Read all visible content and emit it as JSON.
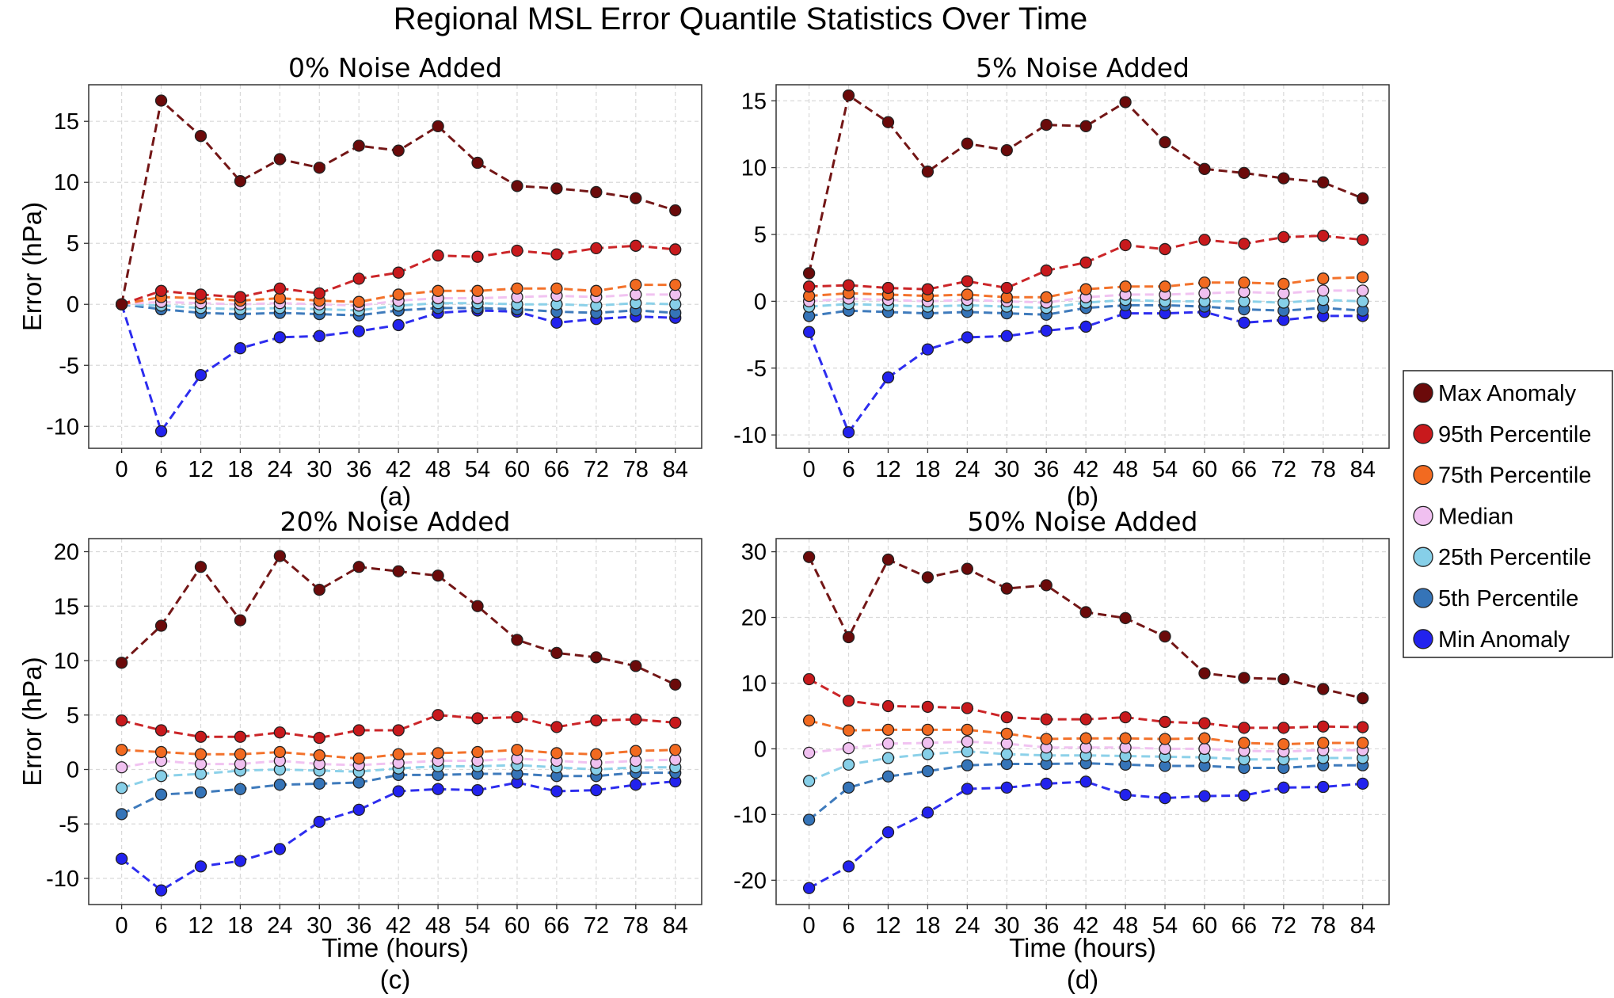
{
  "figure": {
    "title": "Regional MSL Error Quantile Statistics Over Time"
  },
  "legend": {
    "placement": "right",
    "entries": [
      {
        "label": "Max Anomaly",
        "color": "#6b0a0a"
      },
      {
        "label": "95th Percentile",
        "color": "#c8191c"
      },
      {
        "label": "75th Percentile",
        "color": "#f26a20"
      },
      {
        "label": "Median",
        "color": "#f0c0f0"
      },
      {
        "label": "25th Percentile",
        "color": "#86cfe8"
      },
      {
        "label": "5th Percentile",
        "color": "#3574b8"
      },
      {
        "label": "Min Anomaly",
        "color": "#2222ee"
      }
    ]
  },
  "chart_data": [
    {
      "type": "line",
      "panel_label": "(a)",
      "title": "0% Noise Added",
      "xlabel": "",
      "ylabel": "Error (hPa)",
      "x": [
        0,
        6,
        12,
        18,
        24,
        30,
        36,
        42,
        48,
        54,
        60,
        66,
        72,
        78,
        84
      ],
      "xlim": [
        -5,
        88
      ],
      "ylim": [
        -11.8,
        18
      ],
      "yticks": [
        -10,
        -5,
        0,
        5,
        10,
        15
      ],
      "grid": true,
      "series": [
        {
          "name": "Max Anomaly",
          "values": [
            0,
            16.7,
            13.8,
            10.1,
            11.9,
            11.2,
            13.0,
            12.6,
            14.6,
            11.6,
            9.7,
            9.5,
            9.2,
            8.7,
            7.7
          ]
        },
        {
          "name": "95th Percentile",
          "values": [
            0,
            1.1,
            0.8,
            0.6,
            1.3,
            0.9,
            2.1,
            2.6,
            4.0,
            3.9,
            4.4,
            4.1,
            4.6,
            4.8,
            4.5
          ]
        },
        {
          "name": "75th Percentile",
          "values": [
            0,
            0.6,
            0.5,
            0.3,
            0.5,
            0.3,
            0.2,
            0.8,
            1.1,
            1.1,
            1.3,
            1.3,
            1.1,
            1.6,
            1.6
          ]
        },
        {
          "name": "Median",
          "values": [
            0,
            0.2,
            0.1,
            0.0,
            0.1,
            0.0,
            -0.1,
            0.3,
            0.5,
            0.5,
            0.6,
            0.7,
            0.6,
            0.8,
            0.8
          ]
        },
        {
          "name": "25th Percentile",
          "values": [
            0,
            -0.1,
            -0.3,
            -0.4,
            -0.3,
            -0.4,
            -0.5,
            -0.1,
            0.1,
            0.1,
            0.0,
            0.0,
            -0.1,
            0.1,
            0.0
          ]
        },
        {
          "name": "5th Percentile",
          "values": [
            0,
            -0.4,
            -0.7,
            -0.8,
            -0.7,
            -0.8,
            -0.9,
            -0.5,
            -0.3,
            -0.3,
            -0.4,
            -0.6,
            -0.7,
            -0.5,
            -0.7
          ]
        },
        {
          "name": "Min Anomaly",
          "values": [
            0,
            -10.4,
            -5.8,
            -3.6,
            -2.7,
            -2.6,
            -2.2,
            -1.7,
            -0.7,
            -0.5,
            -0.6,
            -1.5,
            -1.2,
            -1.0,
            -1.1
          ]
        }
      ]
    },
    {
      "type": "line",
      "panel_label": "(b)",
      "title": "5% Noise Added",
      "xlabel": "",
      "ylabel": "",
      "x": [
        0,
        6,
        12,
        18,
        24,
        30,
        36,
        42,
        48,
        54,
        60,
        66,
        72,
        78,
        84
      ],
      "xlim": [
        -5,
        88
      ],
      "ylim": [
        -11,
        16.2
      ],
      "yticks": [
        -10,
        -5,
        0,
        5,
        10,
        15
      ],
      "grid": true,
      "series": [
        {
          "name": "Max Anomaly",
          "values": [
            2.1,
            15.4,
            13.4,
            9.7,
            11.8,
            11.3,
            13.2,
            13.1,
            14.9,
            11.9,
            9.9,
            9.6,
            9.2,
            8.9,
            7.7
          ]
        },
        {
          "name": "95th Percentile",
          "values": [
            1.1,
            1.2,
            1.0,
            0.9,
            1.5,
            1.0,
            2.3,
            2.9,
            4.2,
            3.9,
            4.6,
            4.3,
            4.8,
            4.9,
            4.6
          ]
        },
        {
          "name": "75th Percentile",
          "values": [
            0.4,
            0.6,
            0.5,
            0.4,
            0.5,
            0.3,
            0.3,
            0.9,
            1.1,
            1.1,
            1.4,
            1.4,
            1.3,
            1.7,
            1.8
          ]
        },
        {
          "name": "Median",
          "values": [
            0.0,
            0.2,
            0.1,
            0.0,
            0.1,
            0.0,
            -0.1,
            0.3,
            0.5,
            0.5,
            0.6,
            0.7,
            0.6,
            0.8,
            0.8
          ]
        },
        {
          "name": "25th Percentile",
          "values": [
            -0.4,
            -0.2,
            -0.3,
            -0.4,
            -0.3,
            -0.4,
            -0.5,
            -0.1,
            0.1,
            0.0,
            0.0,
            0.0,
            -0.1,
            0.1,
            0.0
          ]
        },
        {
          "name": "5th Percentile",
          "values": [
            -1.1,
            -0.7,
            -0.8,
            -0.9,
            -0.8,
            -0.9,
            -1.0,
            -0.5,
            -0.3,
            -0.3,
            -0.4,
            -0.6,
            -0.7,
            -0.5,
            -0.7
          ]
        },
        {
          "name": "Min Anomaly",
          "values": [
            -2.3,
            -9.8,
            -5.7,
            -3.6,
            -2.7,
            -2.6,
            -2.2,
            -1.9,
            -0.9,
            -0.9,
            -0.8,
            -1.6,
            -1.4,
            -1.1,
            -1.1
          ]
        }
      ]
    },
    {
      "type": "line",
      "panel_label": "(c)",
      "title": "20% Noise Added",
      "xlabel": "Time (hours)",
      "ylabel": "Error (hPa)",
      "x": [
        0,
        6,
        12,
        18,
        24,
        30,
        36,
        42,
        48,
        54,
        60,
        66,
        72,
        78,
        84
      ],
      "xlim": [
        -5,
        88
      ],
      "ylim": [
        -12.4,
        21.2
      ],
      "yticks": [
        -10,
        -5,
        0,
        5,
        10,
        15,
        20
      ],
      "grid": true,
      "series": [
        {
          "name": "Max Anomaly",
          "values": [
            9.8,
            13.2,
            18.6,
            13.7,
            19.6,
            16.5,
            18.6,
            18.2,
            17.8,
            15.0,
            11.9,
            10.7,
            10.3,
            9.5,
            7.8
          ]
        },
        {
          "name": "95th Percentile",
          "values": [
            4.5,
            3.6,
            3.0,
            3.0,
            3.4,
            2.9,
            3.6,
            3.6,
            5.0,
            4.7,
            4.8,
            3.9,
            4.5,
            4.6,
            4.3
          ]
        },
        {
          "name": "75th Percentile",
          "values": [
            1.8,
            1.6,
            1.4,
            1.4,
            1.6,
            1.3,
            1.0,
            1.4,
            1.5,
            1.6,
            1.8,
            1.5,
            1.4,
            1.7,
            1.8
          ]
        },
        {
          "name": "Median",
          "values": [
            0.2,
            0.8,
            0.5,
            0.5,
            0.8,
            0.5,
            0.4,
            0.6,
            0.8,
            0.8,
            1.0,
            0.8,
            0.6,
            0.8,
            0.9
          ]
        },
        {
          "name": "25th Percentile",
          "values": [
            -1.7,
            -0.6,
            -0.4,
            -0.1,
            0.0,
            -0.1,
            -0.2,
            0.1,
            0.3,
            0.3,
            0.4,
            0.2,
            0.0,
            0.2,
            0.2
          ]
        },
        {
          "name": "5th Percentile",
          "values": [
            -4.1,
            -2.3,
            -2.1,
            -1.8,
            -1.4,
            -1.3,
            -1.2,
            -0.5,
            -0.5,
            -0.4,
            -0.4,
            -0.6,
            -0.6,
            -0.3,
            -0.3
          ]
        },
        {
          "name": "Min Anomaly",
          "values": [
            -8.2,
            -11.1,
            -8.9,
            -8.4,
            -7.3,
            -4.8,
            -3.7,
            -2.0,
            -1.8,
            -1.9,
            -1.2,
            -2.0,
            -1.9,
            -1.4,
            -1.1
          ]
        }
      ]
    },
    {
      "type": "line",
      "panel_label": "(d)",
      "title": "50% Noise Added",
      "xlabel": "Time (hours)",
      "ylabel": "",
      "x": [
        0,
        6,
        12,
        18,
        24,
        30,
        36,
        42,
        48,
        54,
        60,
        66,
        72,
        78,
        84
      ],
      "xlim": [
        -5,
        88
      ],
      "ylim": [
        -23.7,
        32
      ],
      "yticks": [
        -20,
        -10,
        0,
        10,
        20,
        30
      ],
      "grid": true,
      "series": [
        {
          "name": "Max Anomaly",
          "values": [
            29.2,
            17.0,
            28.8,
            26.1,
            27.4,
            24.4,
            24.9,
            20.8,
            19.9,
            17.1,
            11.5,
            10.8,
            10.6,
            9.1,
            7.7
          ]
        },
        {
          "name": "95th Percentile",
          "values": [
            10.6,
            7.3,
            6.5,
            6.4,
            6.2,
            4.8,
            4.5,
            4.5,
            4.8,
            4.1,
            3.9,
            3.2,
            3.2,
            3.4,
            3.3
          ]
        },
        {
          "name": "75th Percentile",
          "values": [
            4.3,
            2.8,
            2.9,
            2.9,
            2.9,
            2.3,
            1.5,
            1.6,
            1.6,
            1.5,
            1.6,
            0.9,
            0.7,
            0.9,
            0.9
          ]
        },
        {
          "name": "Median",
          "values": [
            -0.6,
            0.1,
            0.8,
            0.9,
            1.1,
            0.8,
            0.2,
            0.2,
            0.2,
            0.0,
            0.0,
            -0.3,
            -0.4,
            -0.2,
            -0.2
          ]
        },
        {
          "name": "25th Percentile",
          "values": [
            -4.9,
            -2.4,
            -1.4,
            -0.8,
            -0.4,
            -0.8,
            -1.0,
            -1.0,
            -1.1,
            -1.2,
            -1.3,
            -1.6,
            -1.6,
            -1.4,
            -1.4
          ]
        },
        {
          "name": "5th Percentile",
          "values": [
            -10.8,
            -5.9,
            -4.2,
            -3.4,
            -2.5,
            -2.3,
            -2.3,
            -2.2,
            -2.4,
            -2.6,
            -2.6,
            -2.9,
            -2.9,
            -2.5,
            -2.5
          ]
        },
        {
          "name": "Min Anomaly",
          "values": [
            -21.2,
            -17.9,
            -12.7,
            -9.7,
            -6.1,
            -5.9,
            -5.3,
            -5.0,
            -7.0,
            -7.5,
            -7.2,
            -7.1,
            -5.9,
            -5.8,
            -5.3
          ]
        }
      ]
    }
  ]
}
